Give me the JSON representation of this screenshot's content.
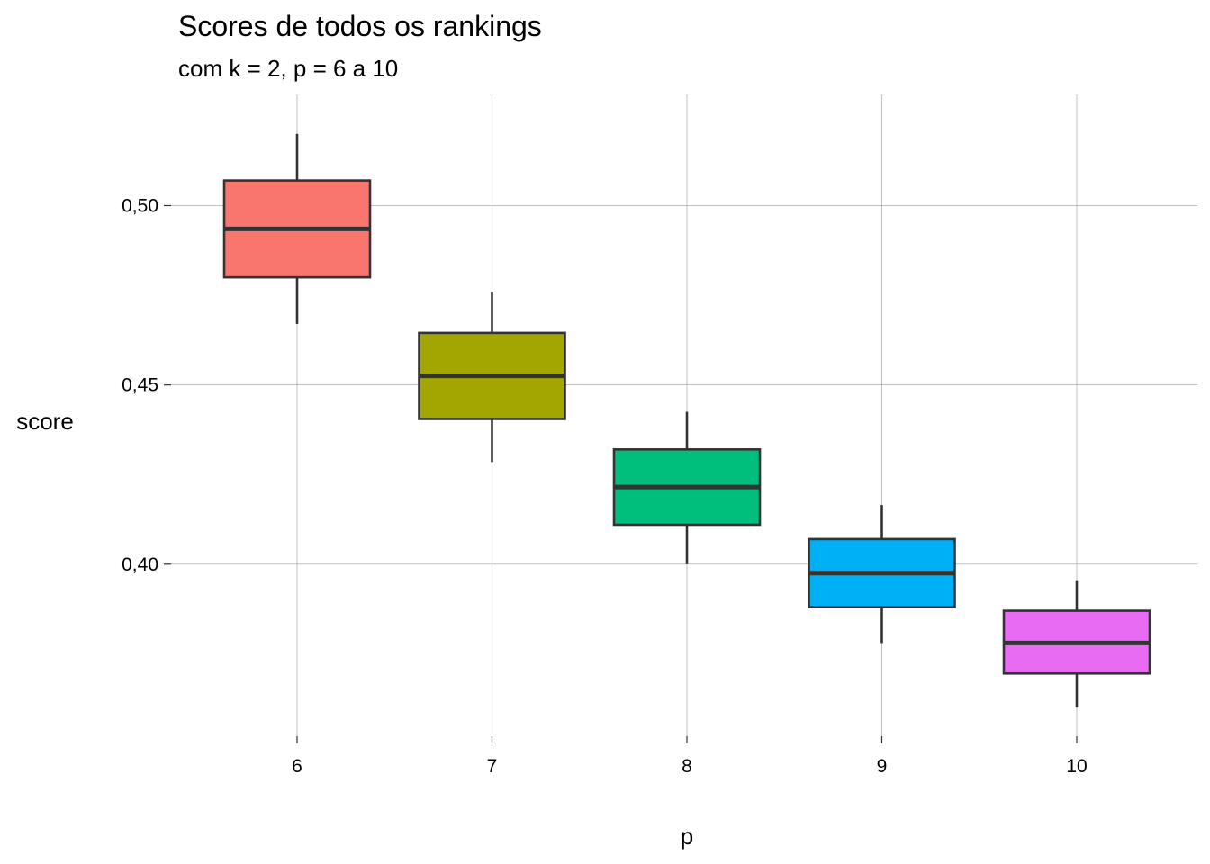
{
  "chart_data": {
    "type": "boxplot",
    "title": "Scores de todos os rankings",
    "subtitle": "com k = 2,  p = 6 a 10",
    "xlabel": "p",
    "ylabel": "score",
    "categories": [
      "6",
      "7",
      "8",
      "9",
      "10"
    ],
    "ylim": [
      0.352,
      0.531
    ],
    "y_ticks": [
      0.4,
      0.45,
      0.5
    ],
    "y_tick_labels": [
      "0,40",
      "0,45",
      "0,50"
    ],
    "grid": true,
    "legend": "none",
    "boxes": [
      {
        "category": "6",
        "min": 0.467,
        "q1": 0.48,
        "median": 0.4935,
        "q3": 0.507,
        "max": 0.52,
        "color": "#F8766D"
      },
      {
        "category": "7",
        "min": 0.4285,
        "q1": 0.4405,
        "median": 0.4525,
        "q3": 0.4645,
        "max": 0.476,
        "color": "#A3A500"
      },
      {
        "category": "8",
        "min": 0.4,
        "q1": 0.411,
        "median": 0.4215,
        "q3": 0.432,
        "max": 0.4425,
        "color": "#00BF7D"
      },
      {
        "category": "9",
        "min": 0.378,
        "q1": 0.388,
        "median": 0.3975,
        "q3": 0.407,
        "max": 0.4165,
        "color": "#00B0F6"
      },
      {
        "category": "10",
        "min": 0.36,
        "q1": 0.3695,
        "median": 0.378,
        "q3": 0.387,
        "max": 0.3955,
        "color": "#E76BF3"
      }
    ]
  }
}
